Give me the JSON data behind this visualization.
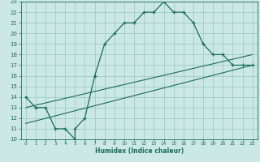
{
  "xlabel": "Humidex (Indice chaleur)",
  "bg_color": "#cce8e4",
  "grid_color": "#9eccc6",
  "line_color": "#1a6b5a",
  "xlim": [
    -0.5,
    23.5
  ],
  "ylim": [
    10,
    23
  ],
  "xticks": [
    0,
    1,
    2,
    3,
    4,
    5,
    6,
    7,
    8,
    9,
    10,
    11,
    12,
    13,
    14,
    15,
    16,
    17,
    18,
    19,
    20,
    21,
    22,
    23
  ],
  "yticks": [
    10,
    11,
    12,
    13,
    14,
    15,
    16,
    17,
    18,
    19,
    20,
    21,
    22,
    23
  ],
  "curve1_x": [
    0,
    1,
    2,
    3,
    4,
    5,
    5,
    6,
    7,
    8,
    9,
    10,
    11,
    12,
    13,
    14,
    15,
    16,
    17,
    18,
    19,
    20,
    21,
    22,
    23
  ],
  "curve1_y": [
    14,
    13,
    13,
    11,
    11,
    10,
    11,
    12,
    16,
    19,
    20,
    21,
    21,
    22,
    22,
    23,
    22,
    22,
    21,
    19,
    18,
    18,
    17,
    17,
    17
  ],
  "line2_x": [
    0,
    23
  ],
  "line2_y": [
    13.0,
    18.0
  ],
  "line3_x": [
    0,
    23
  ],
  "line3_y": [
    11.5,
    17.0
  ]
}
